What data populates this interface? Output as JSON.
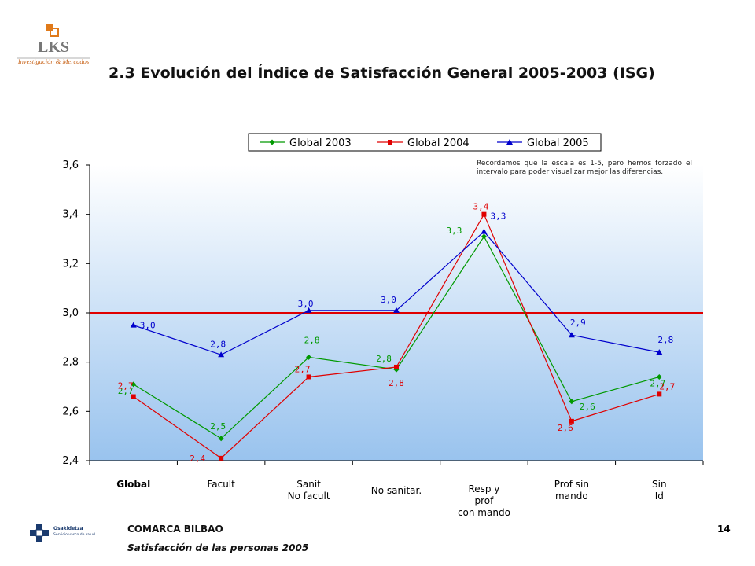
{
  "header": {
    "logo_text": "LKS",
    "logo_tagline": "Investigación & Mercados",
    "title": "2.3 Evolución del Índice de Satisfacción General 2005-2003 (ISG)"
  },
  "footer": {
    "org": "COMARCA BILBAO",
    "subtitle": "Satisfacción de las personas 2005",
    "page": "14",
    "brand_line1": "Osakidetza",
    "brand_line2": "Servicio vasco de salud"
  },
  "note": "Recordamos que la escala es 1-5, pero hemos forzado el intervalo para poder visualizar mejor las diferencias.",
  "colors": {
    "g2003": "#009900",
    "g2004": "#e00000",
    "g2005": "#0000cc",
    "reference": "#e00000",
    "plot_top": "#ffffff",
    "plot_bottom": "#99c3ee"
  },
  "chart_data": {
    "type": "line",
    "categories": [
      [
        "Global"
      ],
      [
        "Facult"
      ],
      [
        "Sanit",
        "No facult"
      ],
      [
        "No sanitar."
      ],
      [
        "Resp y",
        "prof",
        "con mando"
      ],
      [
        "Prof sin",
        "mando"
      ],
      [
        "Sin",
        "Id"
      ]
    ],
    "ylim": [
      2.4,
      3.6
    ],
    "yticks": [
      "2,4",
      "2,6",
      "2,8",
      "3,0",
      "3,2",
      "3,4",
      "3,6"
    ],
    "reference_line": 3.0,
    "legend_position": "top",
    "series": [
      {
        "name": "Global 2003",
        "key": "g2003",
        "marker": "diamond",
        "values": [
          2.71,
          2.49,
          2.82,
          2.77,
          3.31,
          2.64,
          2.74
        ],
        "labels": [
          "2,7",
          "2,5",
          "2,8",
          "2,8",
          "3,3",
          "2,6",
          "2,7"
        ]
      },
      {
        "name": "Global 2004",
        "key": "g2004",
        "marker": "square",
        "values": [
          2.66,
          2.41,
          2.74,
          2.78,
          3.4,
          2.56,
          2.67
        ],
        "labels": [
          "2,7",
          "2,4",
          "2,7",
          "2,8",
          "3,4",
          "2,6",
          "2,7"
        ]
      },
      {
        "name": "Global 2005",
        "key": "g2005",
        "marker": "triangle",
        "values": [
          2.95,
          2.83,
          3.01,
          3.01,
          3.33,
          2.91,
          2.84
        ],
        "labels": [
          "3,0",
          "2,8",
          "3,0",
          "3,0",
          "3,3",
          "2,9",
          "2,8"
        ]
      }
    ]
  }
}
